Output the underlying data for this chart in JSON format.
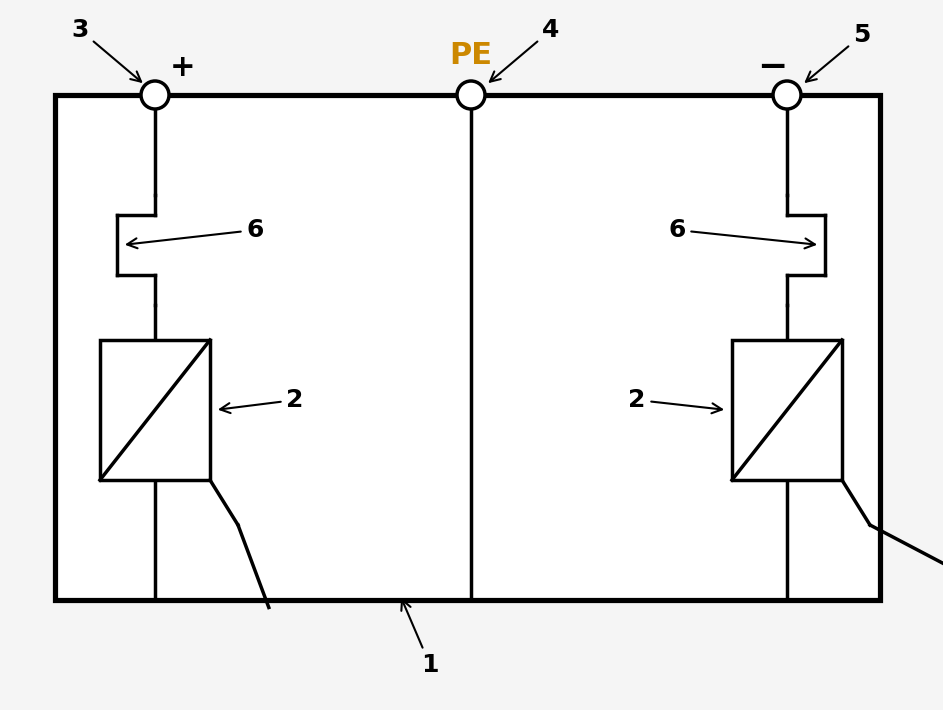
{
  "bg_color": "#f5f5f5",
  "box_color": "#000000",
  "line_color": "#000000",
  "line_width": 2.5,
  "component_lw": 2.5,
  "pe_label_color": "#cc8800"
}
